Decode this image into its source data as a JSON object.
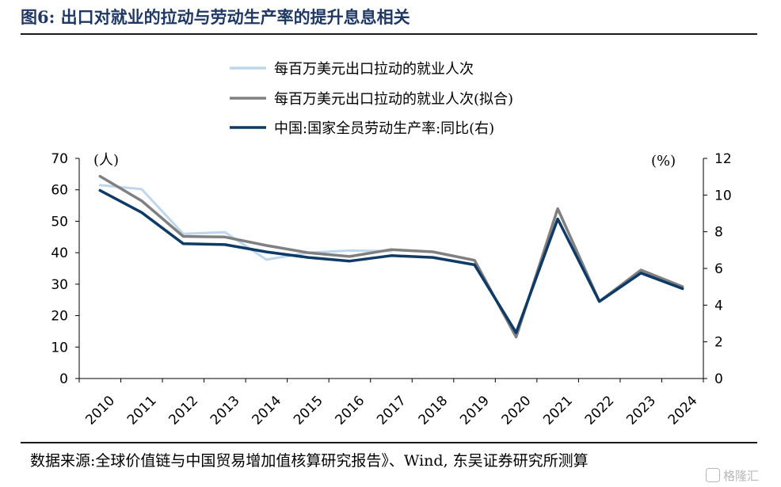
{
  "header": {
    "title": "图6:  出口对就业的拉动与劳动生产率的提升息息相关"
  },
  "footer": {
    "source": "数据来源:全球价值链与中国贸易增加值核算研究报告》、Wind, 东吴证券研究所测算",
    "watermark": "格隆汇"
  },
  "chart_data": {
    "type": "line",
    "x": [
      "2010",
      "2011",
      "2012",
      "2013",
      "2014",
      "2015",
      "2016",
      "2017",
      "2018",
      "2019",
      "2020",
      "2021",
      "2022",
      "2023",
      "2024"
    ],
    "left_axis": {
      "unit_label": "(人)",
      "ylim": [
        0,
        70
      ],
      "ticks": [
        0,
        10,
        20,
        30,
        40,
        50,
        60,
        70
      ]
    },
    "right_axis": {
      "unit_label": "(%)",
      "ylim": [
        0,
        12
      ],
      "ticks": [
        0,
        2,
        4,
        6,
        8,
        10,
        12
      ]
    },
    "legend_placement": "top-center",
    "grid": false,
    "series": [
      {
        "name": "每百万美元出口拉动的就业人次",
        "axis": "left",
        "color": "#bdd7ee",
        "values": [
          61.5,
          60.2,
          46.0,
          46.5,
          37.8,
          40.0,
          40.7,
          40.5,
          null,
          null,
          null,
          null,
          null,
          null,
          null
        ]
      },
      {
        "name": "每百万美元出口拉动的就业人次(拟合)",
        "axis": "left",
        "color": "#808080",
        "values": [
          64.3,
          56.5,
          45.2,
          45.0,
          42.3,
          40.0,
          38.8,
          41.0,
          40.3,
          37.6,
          13.2,
          54.0,
          24.5,
          34.5,
          29.2
        ]
      },
      {
        "name": "中国:国家全员劳动生产率:同比(右)",
        "axis": "right",
        "color": "#0d3a66",
        "values": [
          10.25,
          9.05,
          7.35,
          7.3,
          6.9,
          6.6,
          6.4,
          6.7,
          6.6,
          6.2,
          2.5,
          8.7,
          4.2,
          5.75,
          4.9
        ]
      }
    ]
  }
}
